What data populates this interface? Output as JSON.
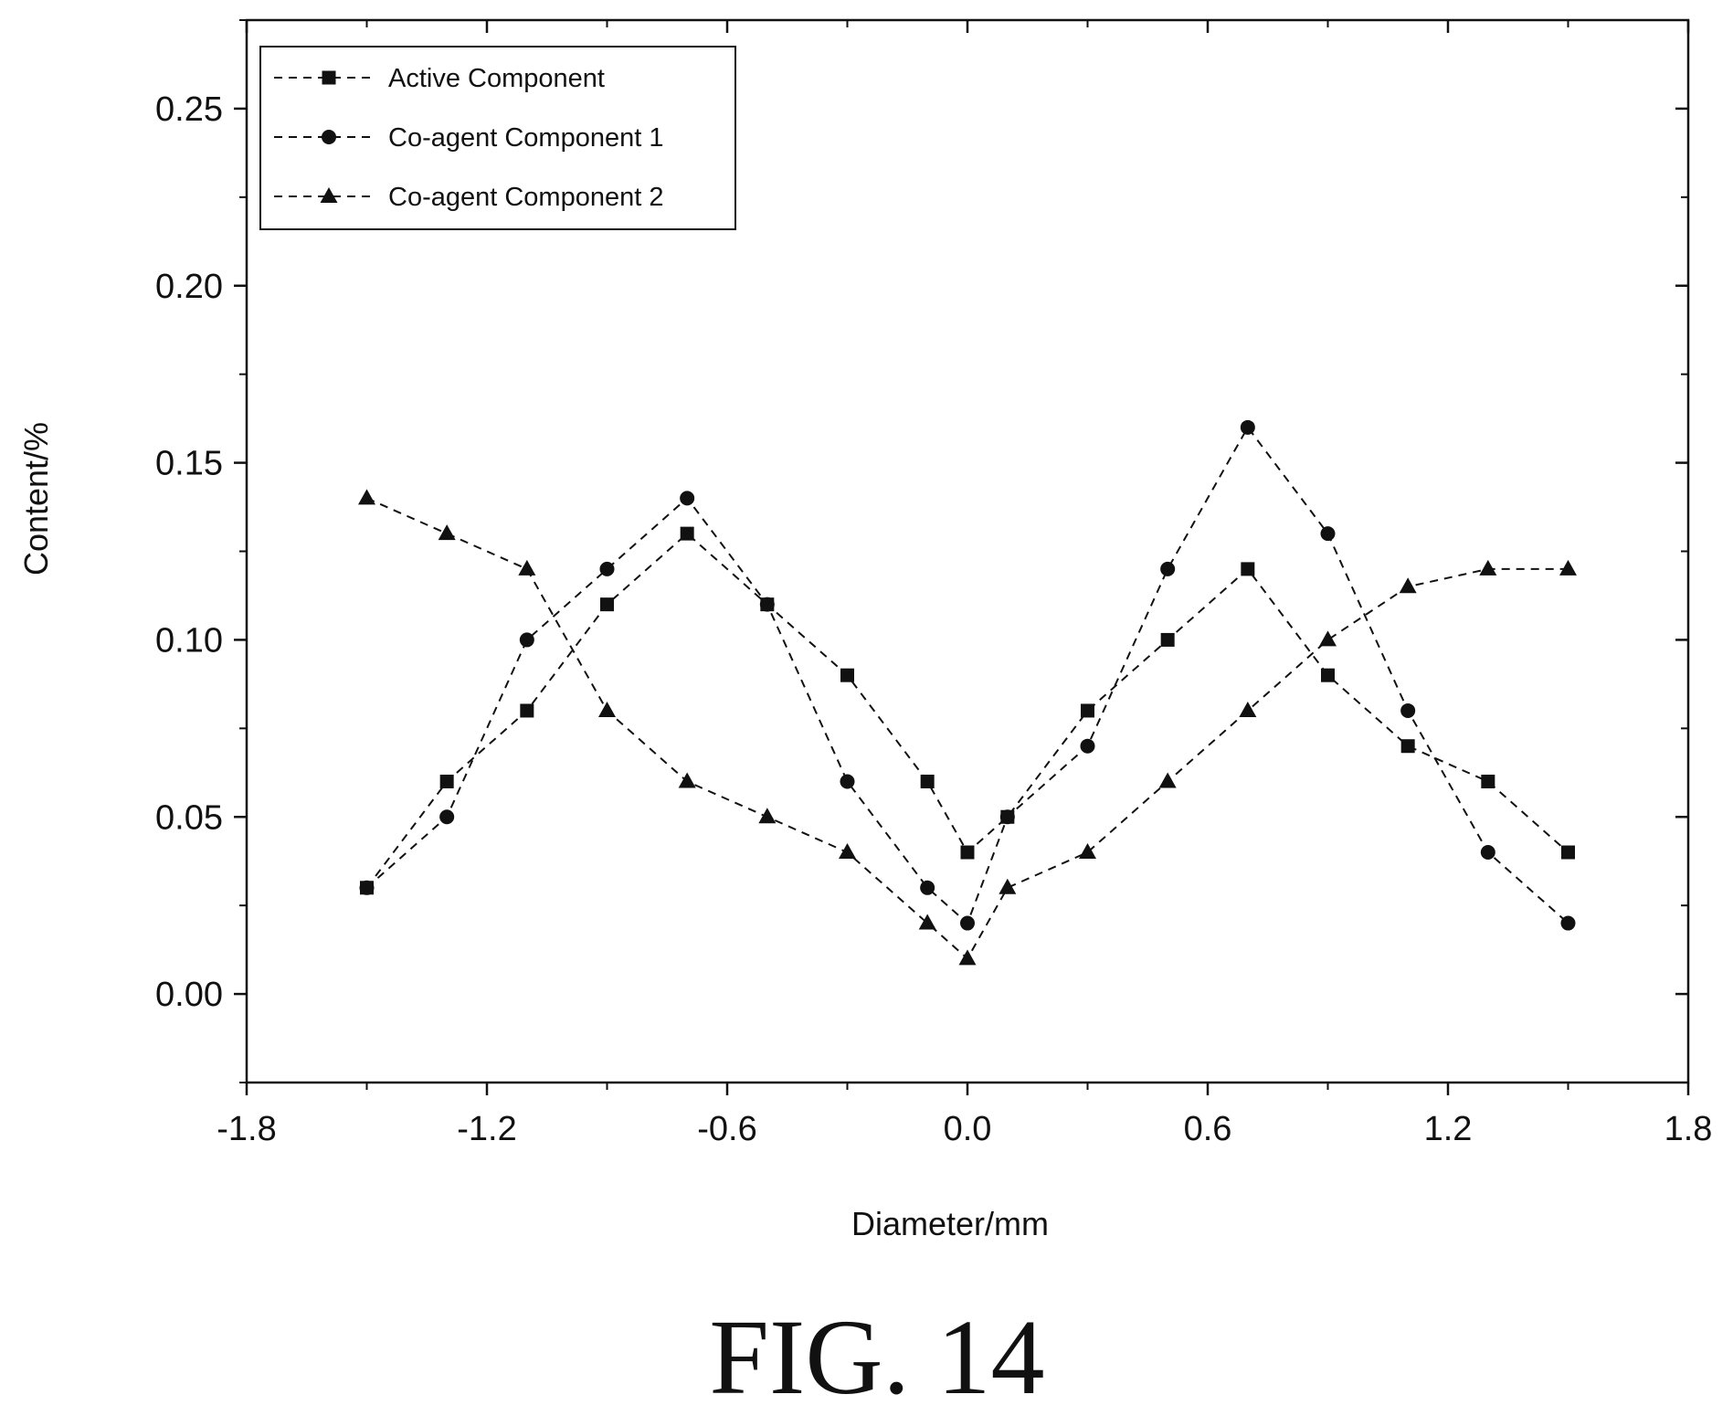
{
  "chart_data": {
    "type": "line",
    "title": "",
    "xlabel": "Diameter/mm",
    "ylabel": "Content/%",
    "xlim": [
      -1.8,
      1.8
    ],
    "ylim": [
      -0.025,
      0.275
    ],
    "x_ticks": [
      "-1.8",
      "-1.2",
      "-0.6",
      "0.0",
      "0.6",
      "1.2",
      "1.8"
    ],
    "y_ticks": [
      "0.00",
      "0.05",
      "0.10",
      "0.15",
      "0.20",
      "0.25"
    ],
    "grid": false,
    "legend": "top-left",
    "series": [
      {
        "name": "Active Component",
        "marker": "square",
        "x": [
          -1.5,
          -1.3,
          -1.1,
          -0.9,
          -0.7,
          -0.5,
          -0.3,
          -0.1,
          0.0,
          0.1,
          0.3,
          0.5,
          0.7,
          0.9,
          1.1,
          1.3,
          1.5
        ],
        "y": [
          0.03,
          0.06,
          0.08,
          0.11,
          0.13,
          0.11,
          0.09,
          0.06,
          0.04,
          0.05,
          0.08,
          0.1,
          0.12,
          0.09,
          0.07,
          0.06,
          0.04
        ]
      },
      {
        "name": "Co-agent Component 1",
        "marker": "circle",
        "x": [
          -1.5,
          -1.3,
          -1.1,
          -0.9,
          -0.7,
          -0.5,
          -0.3,
          -0.1,
          0.0,
          0.1,
          0.3,
          0.5,
          0.7,
          0.9,
          1.1,
          1.3,
          1.5
        ],
        "y": [
          0.03,
          0.05,
          0.1,
          0.12,
          0.14,
          0.11,
          0.06,
          0.03,
          0.02,
          0.05,
          0.07,
          0.12,
          0.16,
          0.13,
          0.08,
          0.04,
          0.02
        ]
      },
      {
        "name": "Co-agent Component 2",
        "marker": "triangle",
        "x": [
          -1.5,
          -1.3,
          -1.1,
          -0.9,
          -0.7,
          -0.5,
          -0.3,
          -0.1,
          0.0,
          0.1,
          0.3,
          0.5,
          0.7,
          0.9,
          1.1,
          1.3,
          1.5
        ],
        "y": [
          0.14,
          0.13,
          0.12,
          0.08,
          0.06,
          0.05,
          0.04,
          0.02,
          0.01,
          0.03,
          0.04,
          0.06,
          0.08,
          0.1,
          0.115,
          0.12,
          0.12
        ]
      }
    ]
  },
  "caption": "FIG. 14",
  "colors": {
    "ink": "#111111",
    "background": "#ffffff"
  }
}
